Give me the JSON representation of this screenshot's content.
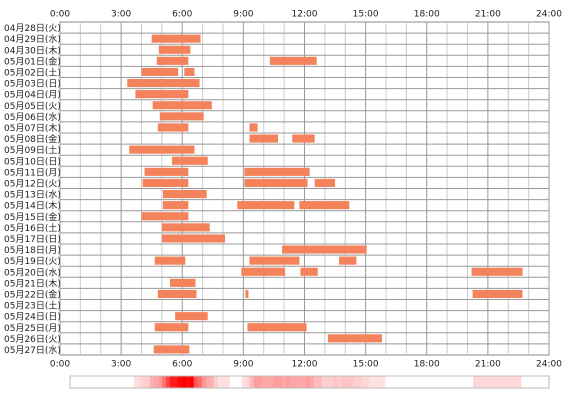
{
  "chart_data": {
    "type": "timeline",
    "categories": [
      "04月28日(火)",
      "04月29日(水)",
      "04月30日(木)",
      "05月01日(金)",
      "05月02日(土)",
      "05月03日(日)",
      "05月04日(月)",
      "05月05日(火)",
      "05月06日(水)",
      "05月07日(木)",
      "05月08日(金)",
      "05月09日(土)",
      "05月10日(日)",
      "05月11日(月)",
      "05月12日(火)",
      "05月13日(水)",
      "05月14日(木)",
      "05月15日(金)",
      "05月16日(土)",
      "05月17日(日)",
      "05月18日(月)",
      "05月19日(火)",
      "05月20日(水)",
      "05月21日(木)",
      "05月22日(金)",
      "05月23日(土)",
      "05月24日(日)",
      "05月25日(月)",
      "05月26日(火)",
      "05月27日(水)"
    ],
    "values": [
      [],
      [
        [
          4.5,
          6.9
        ]
      ],
      [
        [
          4.85,
          6.4
        ]
      ],
      [
        [
          4.75,
          6.3
        ],
        [
          10.3,
          12.6
        ]
      ],
      [
        [
          4.0,
          5.8
        ],
        [
          6.1,
          6.6
        ]
      ],
      [
        [
          3.3,
          6.85
        ]
      ],
      [
        [
          3.7,
          6.3
        ]
      ],
      [
        [
          4.55,
          7.45
        ]
      ],
      [
        [
          4.9,
          7.05
        ]
      ],
      [
        [
          4.8,
          6.3
        ],
        [
          9.3,
          9.7
        ]
      ],
      [
        [
          9.3,
          10.7
        ],
        [
          11.4,
          12.5
        ]
      ],
      [
        [
          3.4,
          6.6
        ]
      ],
      [
        [
          5.5,
          7.25
        ]
      ],
      [
        [
          4.15,
          6.3
        ],
        [
          9.05,
          12.25
        ]
      ],
      [
        [
          4.05,
          6.3
        ],
        [
          9.05,
          12.15
        ],
        [
          12.5,
          13.5
        ]
      ],
      [
        [
          5.05,
          7.2
        ]
      ],
      [
        [
          5.05,
          6.3
        ],
        [
          8.7,
          11.5
        ],
        [
          11.75,
          14.2
        ]
      ],
      [
        [
          4.0,
          6.3
        ]
      ],
      [
        [
          5.0,
          7.35
        ]
      ],
      [
        [
          5.0,
          8.1
        ]
      ],
      [
        [
          10.9,
          15.05
        ]
      ],
      [
        [
          4.65,
          6.15
        ],
        [
          9.3,
          11.75
        ],
        [
          13.7,
          14.55
        ]
      ],
      [
        [
          8.9,
          11.05
        ],
        [
          11.8,
          12.65
        ],
        [
          20.2,
          22.7
        ]
      ],
      [
        [
          5.4,
          6.65
        ]
      ],
      [
        [
          4.8,
          6.7
        ],
        [
          9.1,
          9.25
        ],
        [
          20.25,
          22.7
        ]
      ],
      [],
      [
        [
          5.65,
          7.25
        ]
      ],
      [
        [
          4.65,
          6.3
        ],
        [
          9.2,
          12.1
        ]
      ],
      [
        [
          13.15,
          15.8
        ]
      ],
      [
        [
          4.6,
          6.35
        ]
      ]
    ],
    "color": "#f4825a",
    "xlim": [
      0,
      24
    ],
    "xticks": [
      {
        "value": 0,
        "label": "0:00"
      },
      {
        "value": 3,
        "label": "3:00"
      },
      {
        "value": 6,
        "label": "6:00"
      },
      {
        "value": 9,
        "label": "9:00"
      },
      {
        "value": 12,
        "label": "12:00"
      },
      {
        "value": 15,
        "label": "15:00"
      },
      {
        "value": 18,
        "label": "18:00"
      },
      {
        "value": 21,
        "label": "21:00"
      },
      {
        "value": 24,
        "label": "24:00"
      }
    ],
    "grid": true
  }
}
